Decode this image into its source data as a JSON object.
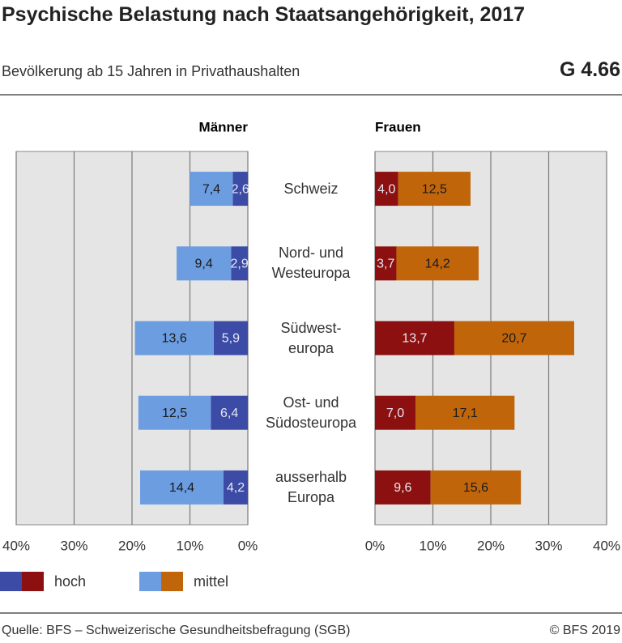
{
  "chart_data": {
    "type": "bar",
    "title": "Psychische Belastung nach Staatsangehörigkeit, 2017",
    "subtitle": "Bevölkerung ab 15 Jahren in Privathaushalten",
    "figure_id": "G 4.66",
    "source": "Quelle: BFS – Schweizerische Gesundheitsbefragung (SGB)",
    "copyright": "© BFS 2019",
    "categories": [
      "Schweiz",
      "Nord- und\nWesteuropa",
      "Südwest-\neuropa",
      "Ost- und\nSüdosteuropa",
      "ausserhalb\nEuropa"
    ],
    "panels": [
      {
        "title": "Männer",
        "xlim": [
          40,
          0
        ],
        "xticks": [
          {
            "value": 40,
            "label": "40%"
          },
          {
            "value": 30,
            "label": "30%"
          },
          {
            "value": 20,
            "label": "20%"
          },
          {
            "value": 10,
            "label": "10%"
          },
          {
            "value": 0,
            "label": "0%"
          }
        ],
        "series": [
          {
            "name": "hoch",
            "color": "#3b4ba6",
            "values": [
              2.6,
              2.9,
              5.9,
              6.4,
              4.2
            ],
            "value_labels": [
              "2,6",
              "2,9",
              "5,9",
              "6,4",
              "4,2"
            ]
          },
          {
            "name": "mittel",
            "color": "#6b9de0",
            "values": [
              7.4,
              9.4,
              13.6,
              12.5,
              14.4
            ],
            "value_labels": [
              "7,4",
              "9,4",
              "13,6",
              "12,5",
              "14,4"
            ]
          }
        ]
      },
      {
        "title": "Frauen",
        "xlim": [
          0,
          40
        ],
        "xticks": [
          {
            "value": 0,
            "label": "0%"
          },
          {
            "value": 10,
            "label": "10%"
          },
          {
            "value": 20,
            "label": "20%"
          },
          {
            "value": 30,
            "label": "30%"
          },
          {
            "value": 40,
            "label": "40%"
          }
        ],
        "series": [
          {
            "name": "hoch",
            "color": "#8c1010",
            "values": [
              4.0,
              3.7,
              13.7,
              7.0,
              9.6
            ],
            "value_labels": [
              "4,0",
              "3,7",
              "13,7",
              "7,0",
              "9,6"
            ]
          },
          {
            "name": "mittel",
            "color": "#c1650b",
            "values": [
              12.5,
              14.2,
              20.7,
              17.1,
              15.6
            ],
            "value_labels": [
              "12,5",
              "14,2",
              "20,7",
              "17,1",
              "15,6"
            ]
          }
        ]
      }
    ]
  }
}
